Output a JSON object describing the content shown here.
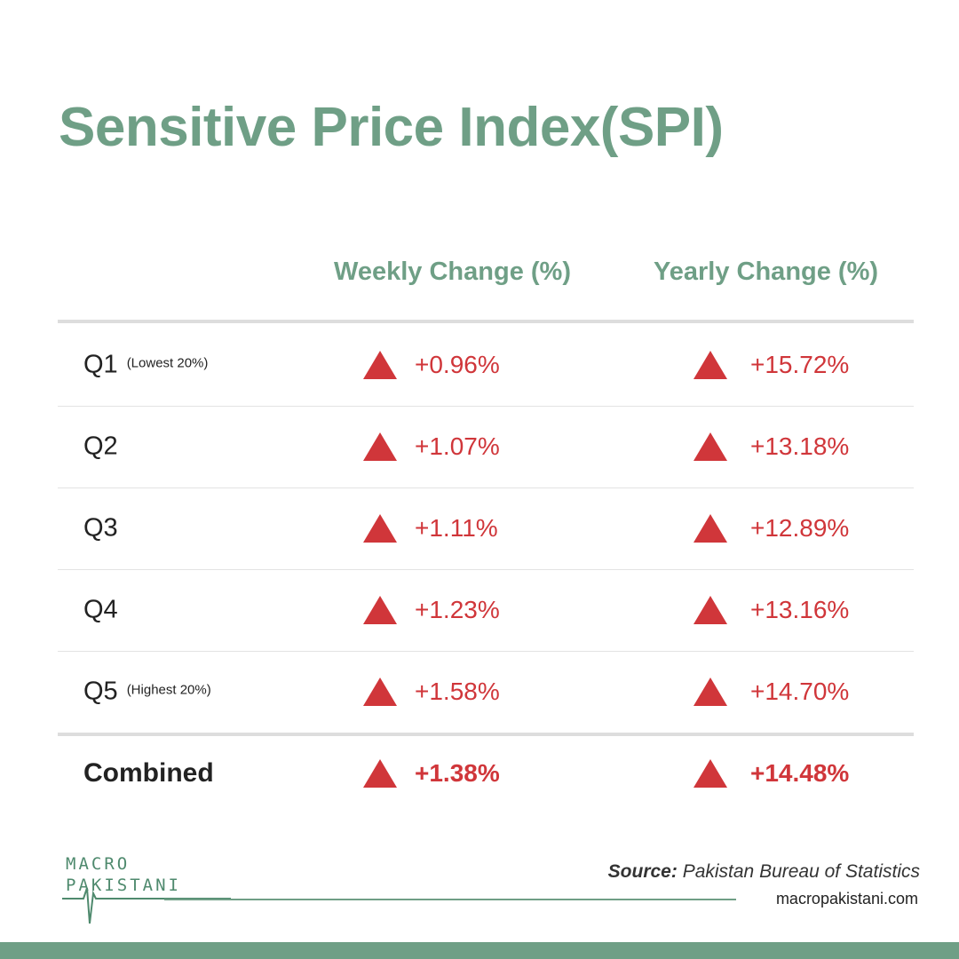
{
  "title": "Sensitive Price Index(SPI)",
  "columns": {
    "weekly": "Weekly Change (%)",
    "yearly": "Yearly Change (%)"
  },
  "rows": [
    {
      "label": "Q1",
      "sub": "(Lowest 20%)",
      "weekly": "+0.96%",
      "yearly": "+15.72%"
    },
    {
      "label": "Q2",
      "sub": "",
      "weekly": "+1.07%",
      "yearly": "+13.18%"
    },
    {
      "label": "Q3",
      "sub": "",
      "weekly": "+1.11%",
      "yearly": "+12.89%"
    },
    {
      "label": "Q4",
      "sub": "",
      "weekly": "+1.23%",
      "yearly": "+13.16%"
    },
    {
      "label": "Q5",
      "sub": "(Highest 20%)",
      "weekly": "+1.58%",
      "yearly": "+14.70%"
    }
  ],
  "combined": {
    "label": "Combined",
    "weekly": "+1.38%",
    "yearly": "+14.48%"
  },
  "trend_icon": "up-triangle-icon",
  "logo": {
    "line1": "MACRO",
    "line2": "PAKISTANI"
  },
  "source": {
    "label": "Source:",
    "text": "Pakistan Bureau of Statistics"
  },
  "website": "macropakistani.com",
  "colors": {
    "accent": "#6f9f86",
    "up": "#d0363a",
    "text": "#222222"
  }
}
